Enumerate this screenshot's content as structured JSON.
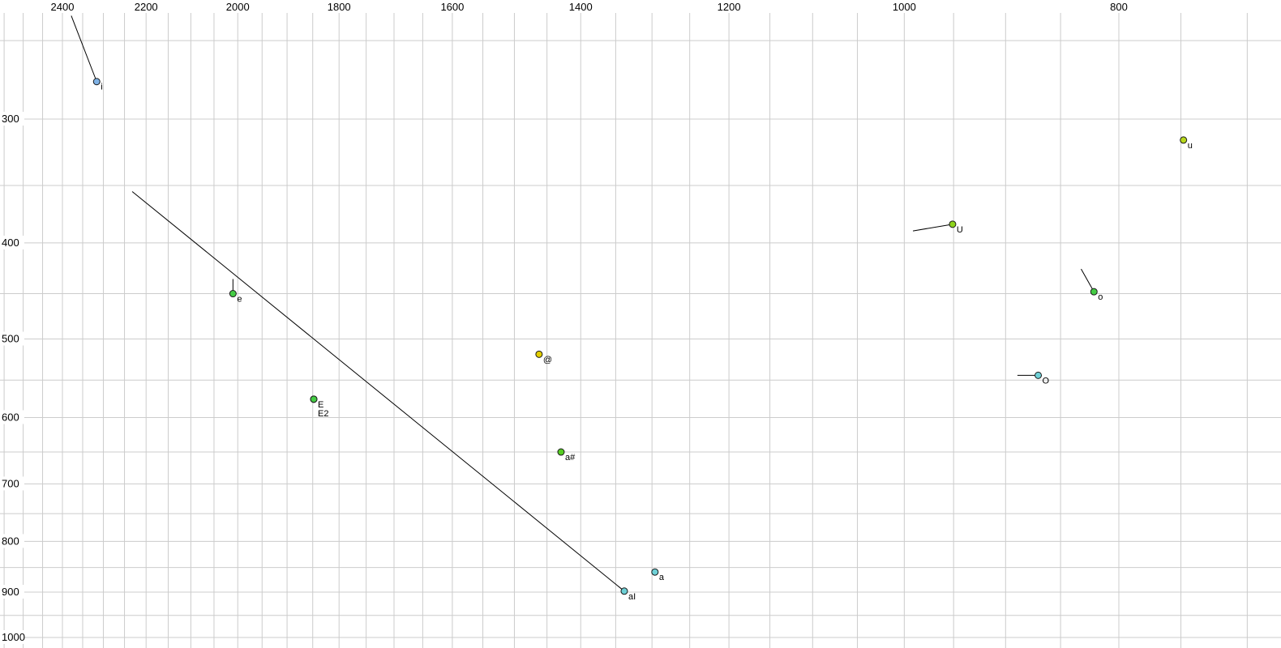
{
  "chart_data": {
    "type": "scatter",
    "title": "",
    "x_axis": {
      "tick_labels": [
        "2400",
        "2200",
        "2000",
        "1800",
        "1600",
        "1400",
        "1200",
        "1000",
        "800"
      ],
      "scale": "log",
      "direction": "reversed-values-decrease-rightward",
      "grid_step": 50,
      "grid_range": [
        700,
        2550
      ]
    },
    "y_axis": {
      "tick_labels": [
        "300",
        "400",
        "500",
        "600",
        "700",
        "800",
        "900",
        "1000"
      ],
      "scale": "log",
      "direction": "values-increase-downward",
      "grid_step": 50,
      "grid_range": [
        250,
        1000
      ]
    },
    "grid_color": "#cccccc",
    "background_color": "#ffffff",
    "point_outline_color": "#1a1a1a",
    "trajectory_color": "#000000",
    "points": [
      {
        "label": "i",
        "f2": 2316,
        "f1": 275,
        "color": "#7fb2e5",
        "tail": {
          "f2": 2378,
          "f1": 236
        }
      },
      {
        "label": "u",
        "f2": 748,
        "f1": 315,
        "color": "#b7d71c"
      },
      {
        "label": "U",
        "f2": 951,
        "f1": 383,
        "color": "#8ed41c",
        "tail": {
          "f2": 991,
          "f1": 389
        }
      },
      {
        "label": "o",
        "f2": 821,
        "f1": 448,
        "color": "#44cc44",
        "tail": {
          "f2": 832,
          "f1": 425
        }
      },
      {
        "label": "e",
        "f2": 2010,
        "f1": 450,
        "color": "#44cc44",
        "tail": {
          "f2": 2010,
          "f1": 435
        }
      },
      {
        "label": "@",
        "f2": 1462,
        "f1": 518,
        "color": "#e3ce00"
      },
      {
        "label": "O",
        "f2": 870,
        "f1": 544,
        "color": "#6ed0d6",
        "tail": {
          "f2": 889,
          "f1": 544
        }
      },
      {
        "label": "E",
        "f2": 1848,
        "f1": 575,
        "color": "#44cc44"
      },
      {
        "label": "E2",
        "f2": 1848,
        "f1": 575,
        "color": "#44cc44",
        "label_dy": 21
      },
      {
        "label": "a#",
        "f2": 1429,
        "f1": 650,
        "color": "#55cc22"
      },
      {
        "label": "a",
        "f2": 1296,
        "f1": 859,
        "color": "#6ed0d6"
      },
      {
        "label": "aI",
        "f2": 1338,
        "f1": 898,
        "color": "#6ed0d6",
        "tail": {
          "f2": 2232,
          "f1": 355
        }
      }
    ]
  }
}
